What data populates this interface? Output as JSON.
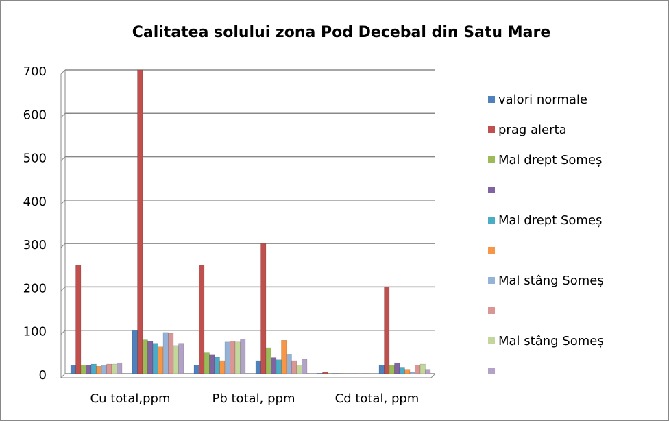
{
  "chart_data": {
    "type": "bar",
    "title": "Calitatea solului zona Pod Decebal din Satu Mare",
    "categories": [
      "Cu total,ppm",
      null,
      "Pb total, ppm",
      null,
      "Cd total, ppm",
      null
    ],
    "series": [
      {
        "name": "valori normale",
        "color": "#4f81bd",
        "values": [
          20,
          100,
          20,
          30,
          1,
          20
        ]
      },
      {
        "name": "prag alerta",
        "color": "#c0504d",
        "values": [
          250,
          700,
          250,
          300,
          3,
          200
        ]
      },
      {
        "name": "Mal drept Someș",
        "color": "#9bbb59",
        "values": [
          20,
          78,
          48,
          60,
          0.5,
          20
        ]
      },
      {
        "name": null,
        "color": "#8064a2",
        "values": [
          20,
          75,
          43,
          37,
          0.5,
          25
        ]
      },
      {
        "name": "Mal drept Someș",
        "color": "#4bacc6",
        "values": [
          22,
          70,
          38,
          32,
          0.5,
          15
        ]
      },
      {
        "name": null,
        "color": "#f79646",
        "values": [
          17,
          62,
          30,
          77,
          0.5,
          10
        ]
      },
      {
        "name": "Mal stâng Someș",
        "color": "#95b3d7",
        "values": [
          20,
          95,
          73,
          45,
          0.5,
          3
        ]
      },
      {
        "name": null,
        "color": "#d99694",
        "values": [
          22,
          93,
          75,
          30,
          0.5,
          20
        ]
      },
      {
        "name": "Mal stâng Someș",
        "color": "#c3d69b",
        "values": [
          22,
          65,
          73,
          20,
          0.5,
          22
        ]
      },
      {
        "name": null,
        "color": "#b3a2c7",
        "values": [
          25,
          70,
          80,
          33,
          0.5,
          10
        ]
      }
    ],
    "ylim": [
      0,
      700
    ],
    "yticks": [
      0,
      100,
      200,
      300,
      400,
      500,
      600,
      700
    ],
    "grid": true
  }
}
